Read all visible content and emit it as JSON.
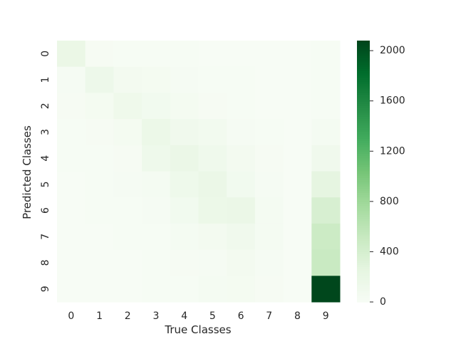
{
  "chart_data": {
    "type": "heatmap",
    "xlabel": "True Classes",
    "ylabel": "Predicted Classes",
    "x_tick_labels": [
      "0",
      "1",
      "2",
      "3",
      "4",
      "5",
      "6",
      "7",
      "8",
      "9"
    ],
    "y_tick_labels": [
      "0",
      "1",
      "2",
      "3",
      "4",
      "5",
      "6",
      "7",
      "8",
      "9"
    ],
    "values": [
      [
        180,
        20,
        15,
        10,
        10,
        5,
        5,
        5,
        5,
        10
      ],
      [
        30,
        140,
        60,
        50,
        30,
        10,
        10,
        5,
        5,
        10
      ],
      [
        20,
        50,
        120,
        80,
        50,
        20,
        10,
        5,
        5,
        10
      ],
      [
        10,
        20,
        50,
        160,
        100,
        70,
        30,
        10,
        5,
        40
      ],
      [
        10,
        10,
        20,
        130,
        170,
        110,
        60,
        20,
        5,
        100
      ],
      [
        5,
        10,
        30,
        40,
        130,
        170,
        80,
        30,
        5,
        250
      ],
      [
        5,
        10,
        10,
        30,
        80,
        160,
        170,
        40,
        5,
        380
      ],
      [
        5,
        5,
        10,
        10,
        40,
        60,
        100,
        40,
        5,
        480
      ],
      [
        5,
        5,
        5,
        10,
        20,
        30,
        60,
        30,
        5,
        500
      ],
      [
        5,
        5,
        5,
        10,
        10,
        40,
        50,
        20,
        5,
        2060
      ]
    ],
    "colorbar": {
      "min": 0,
      "max": 2080,
      "ticks": [
        0,
        400,
        800,
        1200,
        1600,
        2000
      ],
      "colormap": "Greens"
    },
    "colors": {
      "low": "#f7fcf5",
      "high": "#00441b"
    }
  }
}
